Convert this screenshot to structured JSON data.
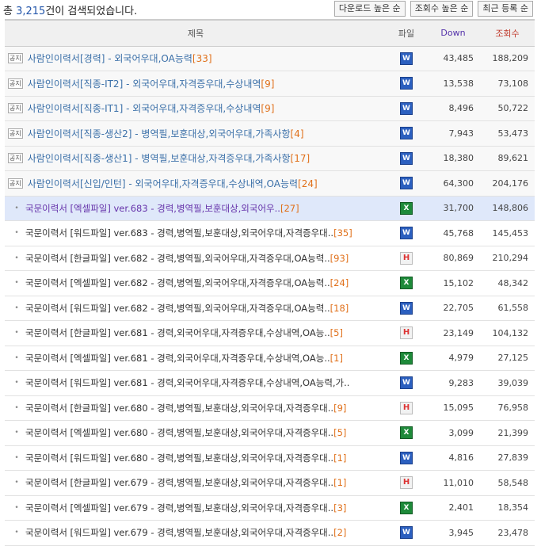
{
  "header": {
    "total_prefix": "총 ",
    "total_count": "3,215",
    "total_suffix": "건이 검색되었습니다.",
    "sort_buttons": [
      "다운로드 높은 순",
      "조회수 높은 순",
      "최근 등록 순"
    ]
  },
  "columns": {
    "title": "제목",
    "file": "파일",
    "down": "Down",
    "views": "조회수"
  },
  "notice_badge": "공지",
  "rows": [
    {
      "type": "notice",
      "title": "사람인이력서[경력] - 외국어우대,OA능력",
      "count": "[33]",
      "file": "word",
      "down": "43,485",
      "views": "188,209"
    },
    {
      "type": "notice",
      "title": "사람인이력서[직종-IT2] - 외국어우대,자격증우대,수상내역",
      "count": "[9]",
      "file": "word",
      "down": "13,538",
      "views": "73,108"
    },
    {
      "type": "notice",
      "title": "사람인이력서[직종-IT1] - 외국어우대,자격증우대,수상내역",
      "count": "[9]",
      "file": "word",
      "down": "8,496",
      "views": "50,722"
    },
    {
      "type": "notice",
      "title": "사람인이력서[직종-생산2] - 병역필,보훈대상,외국어우대,가족사항",
      "count": "[4]",
      "file": "word",
      "down": "7,943",
      "views": "53,473"
    },
    {
      "type": "notice",
      "title": "사람인이력서[직종-생산1] - 병역필,보훈대상,자격증우대,가족사항",
      "count": "[17]",
      "file": "word",
      "down": "18,380",
      "views": "89,621"
    },
    {
      "type": "notice",
      "title": "사람인이력서[신입/인턴] - 외국어우대,자격증우대,수상내역,OA능력",
      "count": "[24]",
      "file": "word",
      "down": "64,300",
      "views": "204,176"
    },
    {
      "type": "hl",
      "title": "국문이력서 [엑셀파일] ver.683 - 경력,병역필,보훈대상,외국어우..",
      "count": "[27]",
      "file": "excel",
      "down": "31,700",
      "views": "148,806"
    },
    {
      "type": "normal",
      "title": "국문이력서 [워드파일] ver.683 - 경력,병역필,보훈대상,외국어우대,자격증우대..",
      "count": "[35]",
      "file": "word",
      "down": "45,768",
      "views": "145,453"
    },
    {
      "type": "normal",
      "title": "국문이력서 [한글파일] ver.682 - 경력,병역필,외국어우대,자격증우대,OA능력..",
      "count": "[93]",
      "file": "hwp",
      "down": "80,869",
      "views": "210,294"
    },
    {
      "type": "normal",
      "title": "국문이력서 [엑셀파일] ver.682 - 경력,병역필,외국어우대,자격증우대,OA능력..",
      "count": "[24]",
      "file": "excel",
      "down": "15,102",
      "views": "48,342"
    },
    {
      "type": "normal",
      "title": "국문이력서 [워드파일] ver.682 - 경력,병역필,외국어우대,자격증우대,OA능력..",
      "count": "[18]",
      "file": "word",
      "down": "22,705",
      "views": "61,558"
    },
    {
      "type": "normal",
      "title": "국문이력서 [한글파일] ver.681 - 경력,외국어우대,자격증우대,수상내역,OA능..",
      "count": "[5]",
      "file": "hwp",
      "down": "23,149",
      "views": "104,132"
    },
    {
      "type": "normal",
      "title": "국문이력서 [엑셀파일] ver.681 - 경력,외국어우대,자격증우대,수상내역,OA능..",
      "count": "[1]",
      "file": "excel",
      "down": "4,979",
      "views": "27,125"
    },
    {
      "type": "normal",
      "title": "국문이력서 [워드파일] ver.681 - 경력,외국어우대,자격증우대,수상내역,OA능력,가..",
      "count": "",
      "file": "word",
      "down": "9,283",
      "views": "39,039"
    },
    {
      "type": "normal",
      "title": "국문이력서 [한글파일] ver.680 - 경력,병역필,보훈대상,외국어우대,자격증우대..",
      "count": "[9]",
      "file": "hwp",
      "down": "15,095",
      "views": "76,958"
    },
    {
      "type": "normal",
      "title": "국문이력서 [엑셀파일] ver.680 - 경력,병역필,보훈대상,외국어우대,자격증우대..",
      "count": "[5]",
      "file": "excel",
      "down": "3,099",
      "views": "21,399"
    },
    {
      "type": "normal",
      "title": "국문이력서 [워드파일] ver.680 - 경력,병역필,보훈대상,외국어우대,자격증우대..",
      "count": "[1]",
      "file": "word",
      "down": "4,816",
      "views": "27,839"
    },
    {
      "type": "normal",
      "title": "국문이력서 [한글파일] ver.679 - 경력,병역필,보훈대상,외국어우대,자격증우대..",
      "count": "[1]",
      "file": "hwp",
      "down": "11,010",
      "views": "58,548"
    },
    {
      "type": "normal",
      "title": "국문이력서 [엑셀파일] ver.679 - 경력,병역필,보훈대상,외국어우대,자격증우대..",
      "count": "[3]",
      "file": "excel",
      "down": "2,401",
      "views": "18,354"
    },
    {
      "type": "normal",
      "title": "국문이력서 [워드파일] ver.679 - 경력,병역필,보훈대상,외국어우대,자격증우대..",
      "count": "[2]",
      "file": "word",
      "down": "3,945",
      "views": "23,478"
    }
  ],
  "file_icons": {
    "word": "W",
    "excel": "X",
    "hwp": "H"
  },
  "file_icon_names": {
    "word": "word-file-icon",
    "excel": "excel-file-icon",
    "hwp": "hwp-file-icon"
  },
  "colors": {
    "word": "#2b5fbf",
    "excel": "#1e8a3a",
    "hwp": "#d33333",
    "count": "#e0701a",
    "highlight_row": "#dfe8fa"
  }
}
